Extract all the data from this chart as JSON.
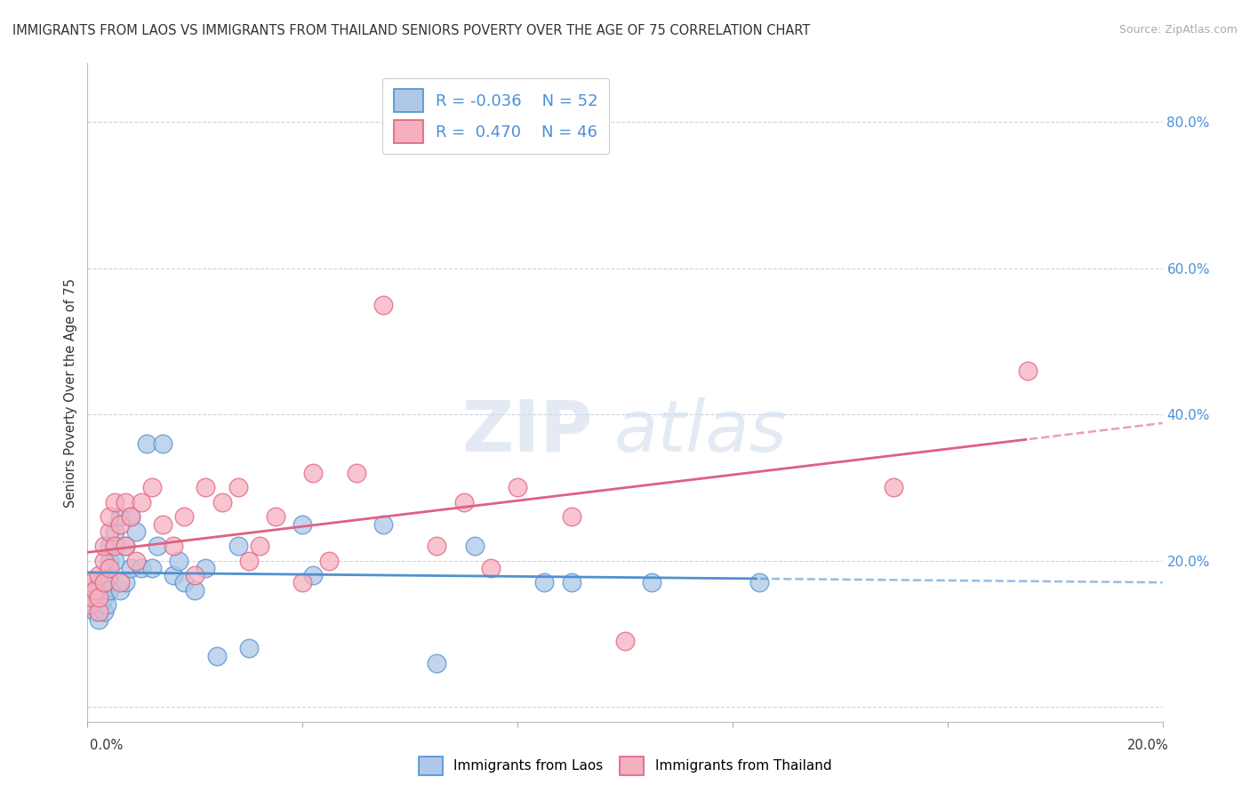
{
  "title": "IMMIGRANTS FROM LAOS VS IMMIGRANTS FROM THAILAND SENIORS POVERTY OVER THE AGE OF 75 CORRELATION CHART",
  "source": "Source: ZipAtlas.com",
  "ylabel": "Seniors Poverty Over the Age of 75",
  "yticks": [
    0.0,
    0.2,
    0.4,
    0.6,
    0.8
  ],
  "ytick_labels": [
    "",
    "20.0%",
    "40.0%",
    "60.0%",
    "80.0%"
  ],
  "xlim": [
    0.0,
    0.2
  ],
  "ylim": [
    -0.02,
    0.88
  ],
  "laos_color": "#adc8e8",
  "thailand_color": "#f5b0c0",
  "laos_line_color": "#5090d0",
  "thailand_line_color": "#e06080",
  "watermark_zip": "ZIP",
  "watermark_atlas": "atlas",
  "laos_x": [
    0.0005,
    0.001,
    0.001,
    0.0015,
    0.0015,
    0.002,
    0.002,
    0.002,
    0.002,
    0.0025,
    0.0025,
    0.003,
    0.003,
    0.003,
    0.003,
    0.0035,
    0.004,
    0.004,
    0.004,
    0.004,
    0.005,
    0.005,
    0.005,
    0.006,
    0.006,
    0.007,
    0.007,
    0.008,
    0.008,
    0.009,
    0.01,
    0.011,
    0.012,
    0.013,
    0.014,
    0.016,
    0.017,
    0.018,
    0.02,
    0.022,
    0.024,
    0.028,
    0.03,
    0.04,
    0.042,
    0.055,
    0.065,
    0.072,
    0.085,
    0.09,
    0.105,
    0.125
  ],
  "laos_y": [
    0.14,
    0.15,
    0.16,
    0.13,
    0.15,
    0.12,
    0.15,
    0.17,
    0.14,
    0.16,
    0.14,
    0.13,
    0.15,
    0.17,
    0.16,
    0.14,
    0.2,
    0.22,
    0.17,
    0.16,
    0.22,
    0.24,
    0.2,
    0.26,
    0.16,
    0.22,
    0.17,
    0.26,
    0.19,
    0.24,
    0.19,
    0.36,
    0.19,
    0.22,
    0.36,
    0.18,
    0.2,
    0.17,
    0.16,
    0.19,
    0.07,
    0.22,
    0.08,
    0.25,
    0.18,
    0.25,
    0.06,
    0.22,
    0.17,
    0.17,
    0.17,
    0.17
  ],
  "thailand_x": [
    0.0005,
    0.001,
    0.001,
    0.0015,
    0.002,
    0.002,
    0.002,
    0.003,
    0.003,
    0.003,
    0.004,
    0.004,
    0.004,
    0.005,
    0.005,
    0.006,
    0.006,
    0.007,
    0.007,
    0.008,
    0.009,
    0.01,
    0.012,
    0.014,
    0.016,
    0.018,
    0.02,
    0.022,
    0.025,
    0.028,
    0.03,
    0.032,
    0.035,
    0.04,
    0.042,
    0.045,
    0.05,
    0.055,
    0.065,
    0.07,
    0.075,
    0.08,
    0.09,
    0.1,
    0.15,
    0.175
  ],
  "thailand_y": [
    0.14,
    0.15,
    0.17,
    0.16,
    0.13,
    0.18,
    0.15,
    0.2,
    0.17,
    0.22,
    0.24,
    0.19,
    0.26,
    0.22,
    0.28,
    0.25,
    0.17,
    0.28,
    0.22,
    0.26,
    0.2,
    0.28,
    0.3,
    0.25,
    0.22,
    0.26,
    0.18,
    0.3,
    0.28,
    0.3,
    0.2,
    0.22,
    0.26,
    0.17,
    0.32,
    0.2,
    0.32,
    0.55,
    0.22,
    0.28,
    0.19,
    0.3,
    0.26,
    0.09,
    0.3,
    0.46
  ]
}
